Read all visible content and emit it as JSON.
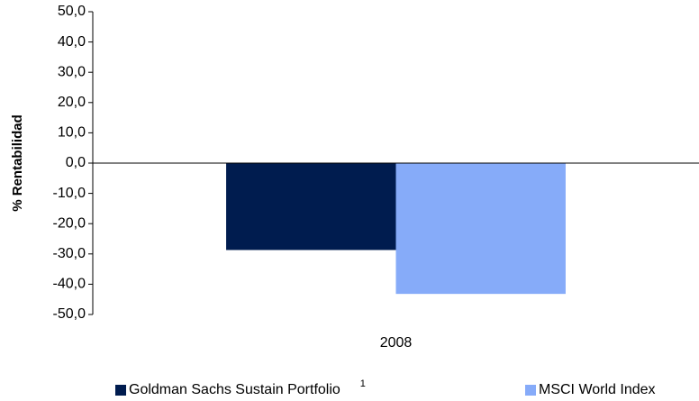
{
  "chart_data": {
    "type": "bar",
    "y_label": "% Rentabilidad",
    "categories": [
      "2008"
    ],
    "series": [
      {
        "name": "Goldman Sachs Sustain Portfolio",
        "note": "1",
        "color": "#001c4f",
        "values": [
          -28.7
        ]
      },
      {
        "name": "MSCI World Index",
        "color": "#86abf9",
        "values": [
          -43.2
        ]
      }
    ],
    "ylim": [
      -50,
      50
    ],
    "yticks": [
      {
        "value": -50,
        "label": "-50,0"
      },
      {
        "value": -40,
        "label": "-40,0"
      },
      {
        "value": -30,
        "label": "-30,0"
      },
      {
        "value": -20,
        "label": "-20,0"
      },
      {
        "value": -10,
        "label": "-10,0"
      },
      {
        "value": 0,
        "label": "0,0"
      },
      {
        "value": 10,
        "label": "10,0"
      },
      {
        "value": 20,
        "label": "20,0"
      },
      {
        "value": 30,
        "label": "30,0"
      },
      {
        "value": 40,
        "label": "40,0"
      },
      {
        "value": 50,
        "label": "50,0"
      }
    ],
    "legend": "bottom"
  }
}
